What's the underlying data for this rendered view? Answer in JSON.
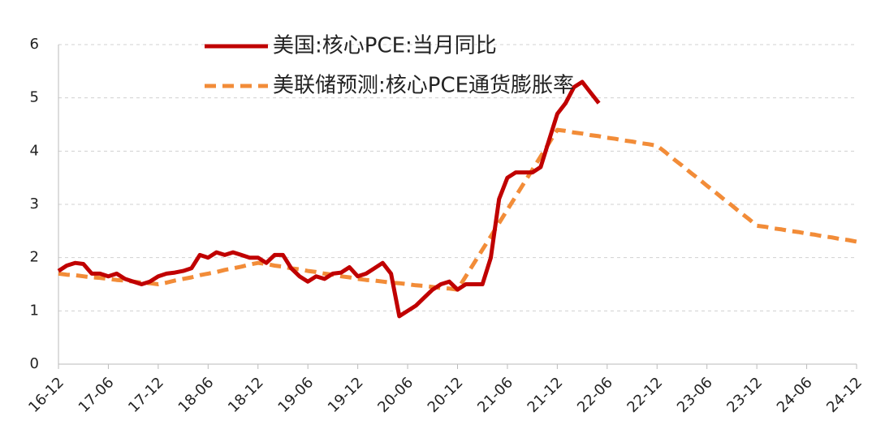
{
  "chart_data": {
    "type": "line",
    "categories": [
      "16-12",
      null,
      null,
      null,
      null,
      null,
      "17-06",
      null,
      null,
      null,
      null,
      null,
      "17-12",
      null,
      null,
      null,
      null,
      null,
      "18-06",
      null,
      null,
      null,
      null,
      null,
      "18-12",
      null,
      null,
      null,
      null,
      null,
      "19-06",
      null,
      null,
      null,
      null,
      null,
      "19-12",
      null,
      null,
      null,
      null,
      null,
      "20-06",
      null,
      null,
      null,
      null,
      null,
      "20-12",
      null,
      null,
      null,
      null,
      null,
      "21-06",
      null,
      null,
      null,
      null,
      null,
      "21-12",
      null,
      null,
      null,
      null,
      null,
      "22-06",
      null,
      null,
      null,
      null,
      null,
      "22-12",
      null,
      null,
      null,
      null,
      null,
      "23-06",
      null,
      null,
      null,
      null,
      null,
      "23-12",
      null,
      null,
      null,
      null,
      null,
      "24-06",
      null,
      null,
      null,
      null,
      null,
      "24-12"
    ],
    "series": [
      {
        "name": "美国:核心PCE:当月同比",
        "color": "#c00000",
        "dashed": false,
        "values": [
          1.75,
          1.85,
          1.9,
          1.88,
          1.7,
          1.7,
          1.65,
          1.7,
          1.6,
          1.55,
          1.5,
          1.55,
          1.65,
          1.7,
          1.72,
          1.75,
          1.8,
          2.05,
          2.0,
          2.1,
          2.05,
          2.1,
          2.05,
          2.0,
          2.0,
          1.9,
          2.05,
          2.05,
          1.8,
          1.65,
          1.55,
          1.65,
          1.6,
          1.7,
          1.72,
          1.82,
          1.65,
          1.7,
          1.8,
          1.9,
          1.7,
          0.9,
          1.0,
          1.1,
          1.25,
          1.4,
          1.5,
          1.55,
          1.4,
          1.5,
          1.5,
          1.5,
          2.0,
          3.1,
          3.5,
          3.6,
          3.6,
          3.6,
          3.7,
          4.2,
          4.7,
          4.9,
          5.2,
          5.3,
          5.1,
          4.9,
          null,
          null,
          null,
          null,
          null,
          null,
          null,
          null,
          null,
          null,
          null,
          null,
          null,
          null,
          null,
          null,
          null,
          null,
          null,
          null,
          null,
          null,
          null,
          null,
          null,
          null,
          null,
          null,
          null,
          null,
          null
        ]
      },
      {
        "name": "美联储预测:核心PCE通货膨胀率",
        "color": "#f28c38",
        "dashed": true,
        "values": [
          1.7,
          1.68,
          1.67,
          1.65,
          1.63,
          1.62,
          1.6,
          1.58,
          1.57,
          1.55,
          1.53,
          1.52,
          1.5,
          1.53,
          1.57,
          1.6,
          1.63,
          1.67,
          1.7,
          1.73,
          1.77,
          1.8,
          1.83,
          1.87,
          1.9,
          1.88,
          1.85,
          1.83,
          1.8,
          1.78,
          1.75,
          1.73,
          1.7,
          1.68,
          1.65,
          1.63,
          1.6,
          1.58,
          1.57,
          1.55,
          1.53,
          1.52,
          1.5,
          1.48,
          1.47,
          1.45,
          1.43,
          1.42,
          1.4,
          1.65,
          1.9,
          2.15,
          2.4,
          2.65,
          2.9,
          3.15,
          3.4,
          3.65,
          3.9,
          4.15,
          4.4,
          4.38,
          4.35,
          4.33,
          4.3,
          4.28,
          4.25,
          4.23,
          4.2,
          4.18,
          4.15,
          4.13,
          4.1,
          3.98,
          3.85,
          3.73,
          3.6,
          3.48,
          3.35,
          3.23,
          3.1,
          2.98,
          2.85,
          2.73,
          2.6,
          2.58,
          2.55,
          2.53,
          2.5,
          2.48,
          2.45,
          2.43,
          2.4,
          2.38,
          2.35,
          2.33,
          2.3
        ]
      }
    ],
    "ylim": [
      0,
      6
    ],
    "yticks": [
      0,
      1,
      2,
      3,
      4,
      5,
      6
    ],
    "grid": true
  }
}
